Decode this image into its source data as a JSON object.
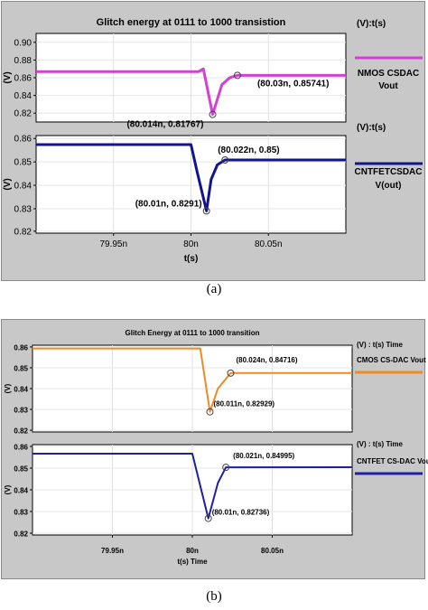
{
  "figures": [
    {
      "id": "a",
      "caption": "(a)",
      "title": "Glitch energy at 0111 to 1000 transistion",
      "xlabel": "t(s)",
      "xticks": [
        "79.95n",
        "80n",
        "80.05n"
      ],
      "subplots": [
        {
          "legend_header": "(V):t(s)",
          "legend_label": [
            "NMOS CSDAC",
            "Vout"
          ],
          "color": "#d43fd4",
          "ylabel": "(V)",
          "yticks": [
            "0.90",
            "0.88",
            "0.86",
            "0.84",
            "0.82"
          ],
          "annotations": [
            "(80.03n, 0.85741)",
            "(80.014n, 0.81767)"
          ]
        },
        {
          "legend_header": "(V):t(s)",
          "legend_label": [
            "CNTFETCSDAC",
            "V(out)"
          ],
          "color": "#14148c",
          "ylabel": "(V)",
          "yticks": [
            "0.86",
            "0.85",
            "0.84",
            "0.83",
            "0.82"
          ],
          "annotations": [
            "(80.022n, 0.85)",
            "(80.01n, 0.8291)"
          ]
        }
      ]
    },
    {
      "id": "b",
      "caption": "(b)",
      "title": "Glitch Energy at 0111 to 1000 transition",
      "xlabel": "t(s) Time",
      "xticks": [
        "79.95n",
        "80n",
        "80.05n"
      ],
      "subplots": [
        {
          "legend_header": "(V) : t(s) Time",
          "legend_label": [
            "CMOS CS-DAC Vout"
          ],
          "color": "#f08a24",
          "ylabel": "(V)",
          "yticks": [
            "0.86",
            "0.85",
            "0.84",
            "0.83",
            "0.82"
          ],
          "annotations": [
            "(80.024n, 0.84716)",
            "(80.011n, 0.82929)"
          ]
        },
        {
          "legend_header": "(V) : t(s) Time",
          "legend_label": [
            "CNTFET CS-DAC Vout"
          ],
          "color": "#1f1fa0",
          "ylabel": "(V)",
          "yticks": [
            "0.86",
            "0.85",
            "0.84",
            "0.83",
            "0.82"
          ],
          "annotations": [
            "(80.021n, 0.84995)",
            "(80.01n, 0.82736)"
          ]
        }
      ]
    }
  ],
  "chart_data": [
    {
      "type": "line",
      "title": "Glitch energy at 0111 to 1000 transistion",
      "xlabel": "t(s)",
      "ylabel": "(V)",
      "xlim": [
        7.99e-08,
        8.01e-08
      ],
      "ylim": [
        0.81,
        0.9
      ],
      "x": [
        7.99e-08,
        8.0005e-08,
        8.0008e-08,
        8.0014e-08,
        8.002e-08,
        8.0025e-08,
        8.003e-08,
        8.01e-08
      ],
      "series": [
        {
          "name": "NMOS CSDAC Vout",
          "values": [
            0.8612,
            0.8612,
            0.864,
            0.81767,
            0.848,
            0.855,
            0.85741,
            0.8574
          ]
        }
      ],
      "annotations": [
        {
          "x": 8.003e-08,
          "y": 0.85741,
          "text": "(80.03n, 0.85741)"
        },
        {
          "x": 8.0014e-08,
          "y": 0.81767,
          "text": "(80.014n, 0.81767)"
        }
      ]
    },
    {
      "type": "line",
      "xlabel": "t(s)",
      "ylabel": "(V)",
      "xlim": [
        7.99e-08,
        8.01e-08
      ],
      "ylim": [
        0.82,
        0.86
      ],
      "x": [
        7.99e-08,
        8e-08,
        8.0004e-08,
        8.001e-08,
        8.0013e-08,
        8.0017e-08,
        8.0022e-08,
        8.01e-08
      ],
      "series": [
        {
          "name": "CNTFETCSDAC V(out)",
          "values": [
            0.8563,
            0.8563,
            0.845,
            0.8291,
            0.842,
            0.848,
            0.85,
            0.85
          ]
        }
      ],
      "annotations": [
        {
          "x": 8.0022e-08,
          "y": 0.85,
          "text": "(80.022n, 0.85)"
        },
        {
          "x": 8.001e-08,
          "y": 0.8291,
          "text": "(80.01n, 0.8291)"
        }
      ]
    },
    {
      "type": "line",
      "title": "Glitch Energy at 0111 to 1000 transition",
      "xlabel": "t(s) Time",
      "ylabel": "(V)",
      "xlim": [
        7.99e-08,
        8.01e-08
      ],
      "ylim": [
        0.82,
        0.86
      ],
      "x": [
        7.99e-08,
        8.0005e-08,
        8.0011e-08,
        8.0016e-08,
        8.0024e-08,
        8.01e-08
      ],
      "series": [
        {
          "name": "CMOS CS-DAC Vout",
          "values": [
            0.8585,
            0.8585,
            0.82929,
            0.84,
            0.84716,
            0.8472
          ]
        }
      ],
      "annotations": [
        {
          "x": 8.0024e-08,
          "y": 0.84716,
          "text": "(80.024n, 0.84716)"
        },
        {
          "x": 8.0011e-08,
          "y": 0.82929,
          "text": "(80.011n, 0.82929)"
        }
      ]
    },
    {
      "type": "line",
      "xlabel": "t(s) Time",
      "ylabel": "(V)",
      "xlim": [
        7.99e-08,
        8.01e-08
      ],
      "ylim": [
        0.82,
        0.86
      ],
      "x": [
        7.99e-08,
        8e-08,
        8.001e-08,
        8.0016e-08,
        8.0021e-08,
        8.01e-08
      ],
      "series": [
        {
          "name": "CNTFET CS-DAC Vout",
          "values": [
            0.856,
            0.856,
            0.82736,
            0.843,
            0.84995,
            0.85
          ]
        }
      ],
      "annotations": [
        {
          "x": 8.0021e-08,
          "y": 0.84995,
          "text": "(80.021n, 0.84995)"
        },
        {
          "x": 8.001e-08,
          "y": 0.82736,
          "text": "(80.01n, 0.82736)"
        }
      ]
    }
  ]
}
